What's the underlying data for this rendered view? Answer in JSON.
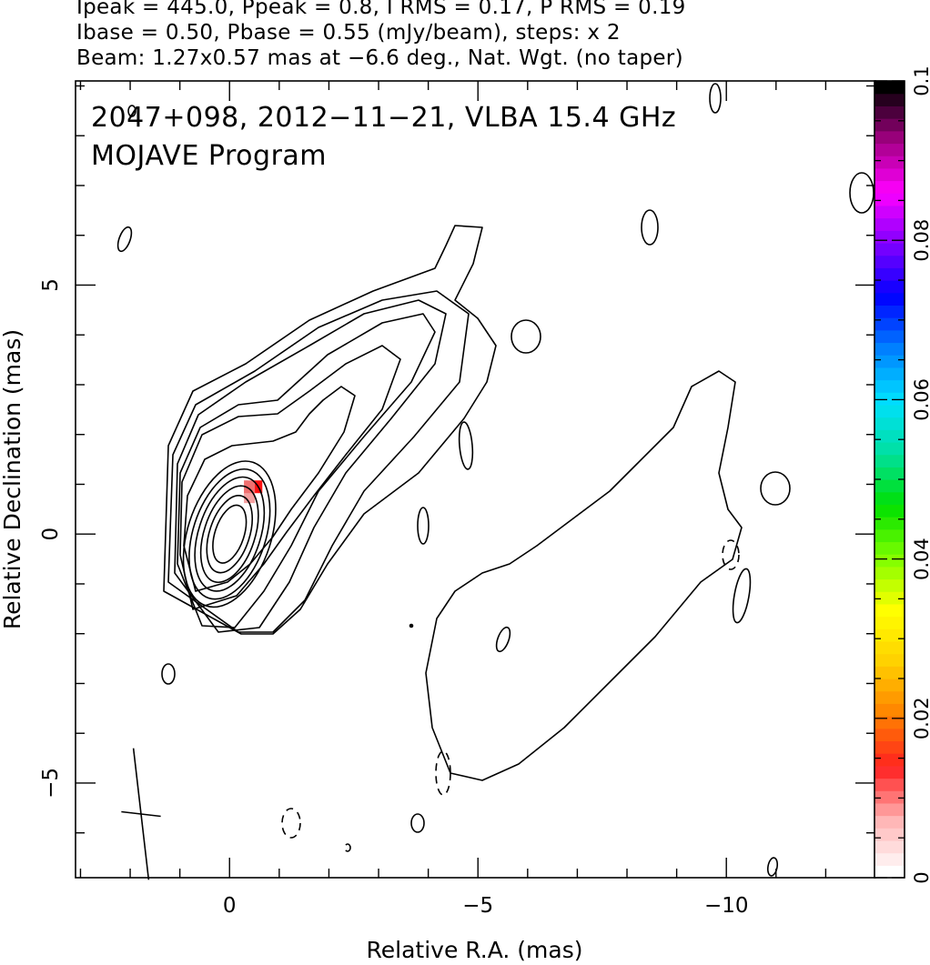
{
  "header": {
    "line1": "Ipeak = 445.0, Ppeak = 0.8, I RMS = 0.17, P RMS = 0.19",
    "line2": "Ibase = 0.50, Pbase = 0.55 (mJy/beam), steps: x 2",
    "line3": "Beam: 1.27x0.57 mas at −6.6 deg., Nat. Wgt. (no taper)"
  },
  "plot": {
    "title": "2047+098, 2012−11−21, VLBA 15.4 GHz",
    "subtitle": "MOJAVE Program"
  },
  "chart_data": {
    "type": "heatmap",
    "xlabel": "Relative R.A. (mas)",
    "ylabel": "Relative Declination (mas)",
    "xlim": [
      3.1,
      -13.0
    ],
    "ylim": [
      -6.9,
      9.1
    ],
    "x_ticks": [
      "0",
      "−5",
      "−10"
    ],
    "y_ticks": [
      "−5",
      "0",
      "5"
    ],
    "colorbar": {
      "range": [
        0,
        0.1
      ],
      "tick_labels": [
        "0",
        "0.02",
        "0.04",
        "0.06",
        "0.08",
        "0.1"
      ],
      "colors": [
        "#ffffff",
        "#ffb3b3",
        "#ff2020",
        "#ff8000",
        "#ffd000",
        "#ffff00",
        "#80ff00",
        "#00e000",
        "#00e0a0",
        "#00e0ff",
        "#0080ff",
        "#0000ff",
        "#8000ff",
        "#ff00ff",
        "#a00080",
        "#000000"
      ]
    },
    "image_peak_mas": [
      0,
      0
    ],
    "pixels": [
      {
        "x": -0.55,
        "y": 0.95,
        "value": 0.02
      },
      {
        "x": -0.4,
        "y": 0.75,
        "value": 0.012
      },
      {
        "x": -0.4,
        "y": 0.95,
        "value": 0.018
      }
    ],
    "beam": {
      "major_mas": 1.27,
      "minor_mas": 0.57,
      "pa_deg": -6.6
    },
    "contours": {
      "base_mJy_per_beam": 0.5,
      "step_factor": 2,
      "peak_mJy_per_beam": 445.0,
      "count": 11
    },
    "grid": false
  }
}
